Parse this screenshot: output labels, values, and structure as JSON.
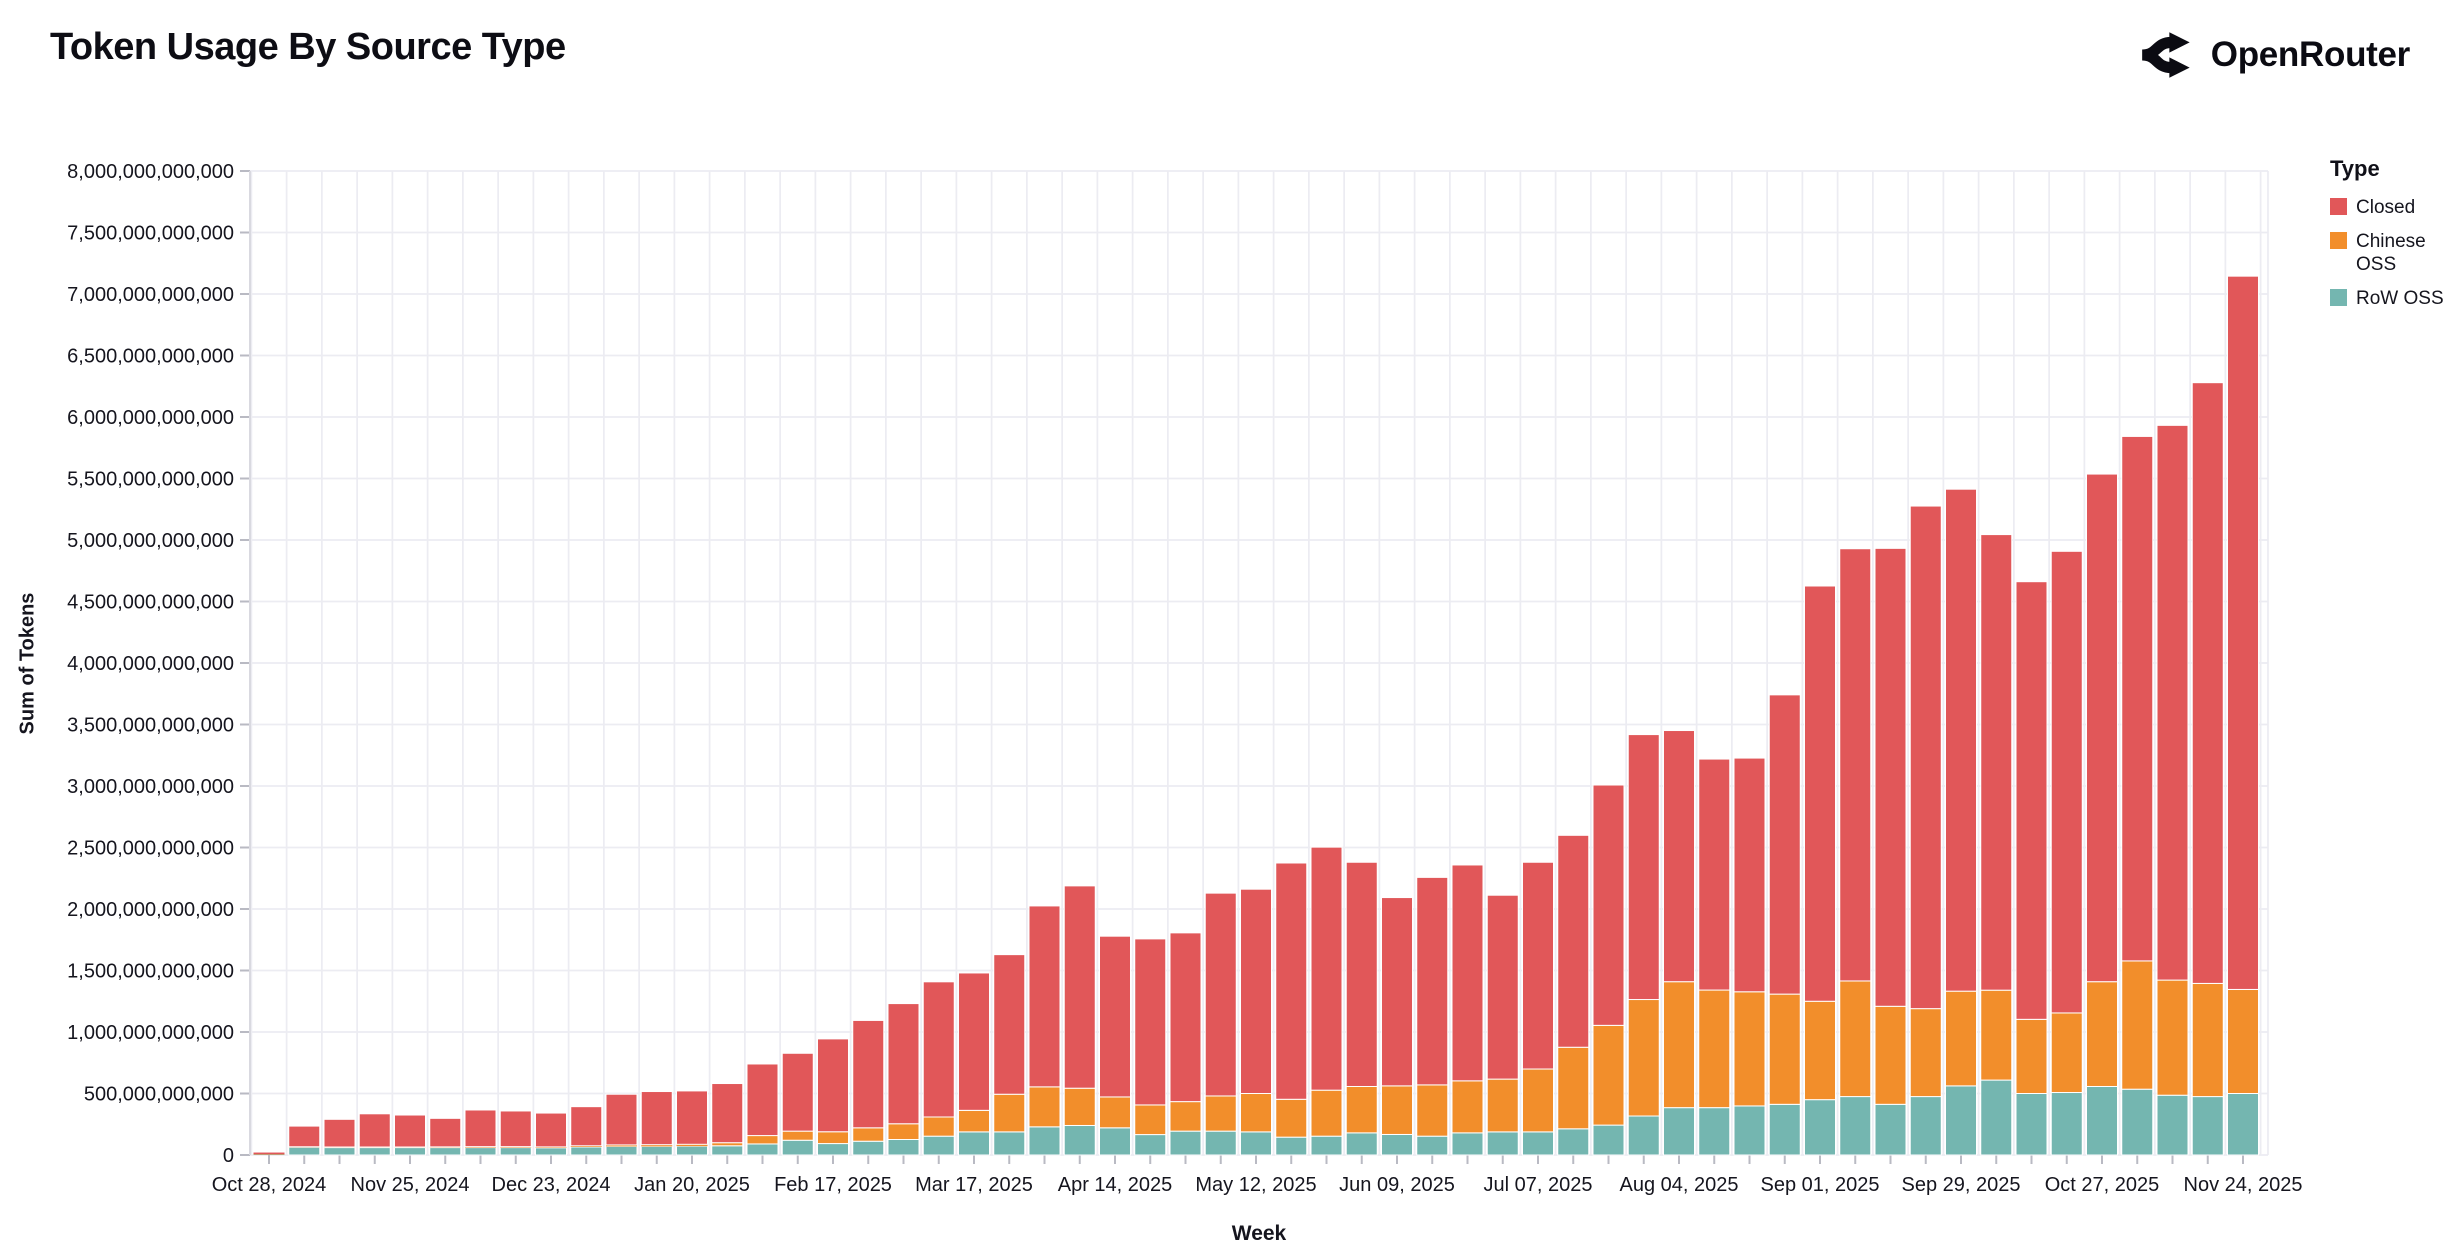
{
  "header": {
    "title": "Token Usage By Source Type",
    "brand": "OpenRouter"
  },
  "chart_data": {
    "type": "bar",
    "stacked": true,
    "title": "Token Usage By Source Type",
    "xlabel": "Week",
    "ylabel": "Sum of Tokens",
    "unit": "tokens, values listed in billions (1 = 1,000,000,000 tokens)",
    "ylim": [
      0,
      8000
    ],
    "ytick_step": 500,
    "grid": true,
    "legend_title": "Type",
    "legend_position": "top-right",
    "stack_order_bottom_to_top": [
      "RoW OSS",
      "Chinese OSS",
      "Closed"
    ],
    "categories": [
      "2024-10-28",
      "2024-11-04",
      "2024-11-11",
      "2024-11-18",
      "2024-11-25",
      "2024-12-02",
      "2024-12-09",
      "2024-12-16",
      "2024-12-23",
      "2024-12-30",
      "2025-01-06",
      "2025-01-13",
      "2025-01-20",
      "2025-01-27",
      "2025-02-03",
      "2025-02-10",
      "2025-02-17",
      "2025-02-24",
      "2025-03-03",
      "2025-03-10",
      "2025-03-17",
      "2025-03-24",
      "2025-03-31",
      "2025-04-07",
      "2025-04-14",
      "2025-04-21",
      "2025-04-28",
      "2025-05-05",
      "2025-05-12",
      "2025-05-19",
      "2025-05-26",
      "2025-06-02",
      "2025-06-09",
      "2025-06-16",
      "2025-06-23",
      "2025-06-30",
      "2025-07-07",
      "2025-07-14",
      "2025-07-21",
      "2025-07-28",
      "2025-08-04",
      "2025-08-11",
      "2025-08-18",
      "2025-08-25",
      "2025-09-01",
      "2025-09-08",
      "2025-09-15",
      "2025-09-22",
      "2025-09-29",
      "2025-10-06",
      "2025-10-13",
      "2025-10-20",
      "2025-10-27",
      "2025-11-03",
      "2025-11-10",
      "2025-11-17",
      "2025-11-24"
    ],
    "xtick_every": 4,
    "xtick_labels": [
      "Oct 28, 2024",
      "Nov 25, 2024",
      "Dec 23, 2024",
      "Jan 20, 2025",
      "Feb 17, 2025",
      "Mar 17, 2025",
      "Apr 14, 2025",
      "May 12, 2025",
      "Jun 09, 2025",
      "Jul 07, 2025",
      "Aug 04, 2025",
      "Sep 01, 2025",
      "Sep 29, 2025",
      "Oct 27, 2025",
      "Nov 24, 2025"
    ],
    "ytick_labels": [
      "0",
      "500,000,000,000",
      "1,000,000,000,000",
      "1,500,000,000,000",
      "2,000,000,000,000",
      "2,500,000,000,000",
      "3,000,000,000,000",
      "3,500,000,000,000",
      "4,000,000,000,000",
      "4,500,000,000,000",
      "5,000,000,000,000",
      "5,500,000,000,000",
      "6,000,000,000,000",
      "6,500,000,000,000",
      "7,000,000,000,000",
      "7,500,000,000,000",
      "8,000,000,000,000"
    ],
    "series": [
      {
        "name": "Closed",
        "color": "#e15759",
        "values": [
          13,
          168,
          225,
          270,
          260,
          232,
          298,
          290,
          275,
          318,
          412,
          432,
          434,
          481,
          582,
          633,
          755,
          873,
          977,
          1099,
          1117,
          1135,
          1471,
          1645,
          1307,
          1350,
          1372,
          1649,
          1661,
          1921,
          1976,
          1823,
          1531,
          1687,
          1755,
          1495,
          1681,
          1723,
          1954,
          2154,
          2042,
          1878,
          1900,
          2433,
          3376,
          3514,
          3723,
          4086,
          4081,
          3704,
          3558,
          3753,
          4127,
          4264,
          4510,
          4884,
          5799
        ]
      },
      {
        "name": "Chinese OSS",
        "color": "#f28e2b",
        "values": [
          2,
          4,
          5,
          5,
          5,
          6,
          8,
          8,
          8,
          10,
          12,
          14,
          15,
          25,
          68,
          74,
          96,
          109,
          128,
          156,
          175,
          306,
          325,
          303,
          251,
          241,
          240,
          286,
          312,
          308,
          374,
          377,
          395,
          417,
          423,
          429,
          511,
          663,
          811,
          947,
          1024,
          956,
          928,
          896,
          800,
          940,
          797,
          715,
          770,
          731,
          603,
          647,
          852,
          1043,
          936,
          920,
          846
        ]
      },
      {
        "name": "RoW OSS",
        "color": "#74b6b0",
        "values": [
          5,
          63,
          60,
          60,
          60,
          60,
          60,
          60,
          58,
          65,
          70,
          70,
          72,
          75,
          90,
          120,
          93,
          112,
          126,
          153,
          188,
          188,
          229,
          240,
          221,
          166,
          194,
          194,
          188,
          145,
          153,
          180,
          167,
          153,
          180,
          188,
          188,
          213,
          243,
          317,
          385,
          385,
          399,
          412,
          450,
          475,
          412,
          475,
          562,
          609,
          500,
          508,
          557,
          535,
          486,
          475,
          500
        ]
      }
    ],
    "theme": {
      "grid_color": "#ececf2",
      "tick_color": "#b9bac3",
      "spine_color": "#d9d9e0",
      "text_color": "#15151e",
      "background": "#ffffff",
      "segment_outline": "#ffffff"
    }
  }
}
